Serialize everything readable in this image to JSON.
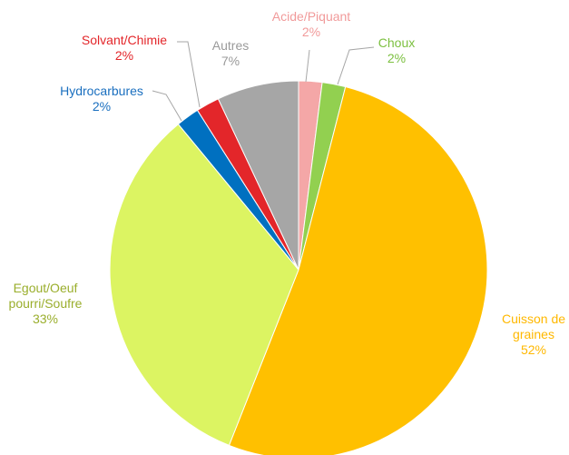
{
  "chart_data": {
    "type": "pie",
    "categories": [
      "Acide/Piquant",
      "Choux",
      "Cuisson de graines",
      "Egout/Oeuf pourri/Soufre",
      "Hydrocarbures",
      "Solvant/Chimie",
      "Autres"
    ],
    "values": [
      2,
      2,
      52,
      33,
      2,
      2,
      7
    ],
    "value_labels": [
      "2%",
      "2%",
      "52%",
      "33%",
      "2%",
      "2%",
      "7%"
    ],
    "colors": [
      "#f4a7a7",
      "#92d050",
      "#ffc000",
      "#dcf462",
      "#0070c0",
      "#e3262a",
      "#a6a6a6"
    ],
    "label_colors": [
      "#f19a9a",
      "#7cc040",
      "#ffb800",
      "#9aae2c",
      "#1a6fbf",
      "#e3262a",
      "#9a9a9a"
    ]
  }
}
